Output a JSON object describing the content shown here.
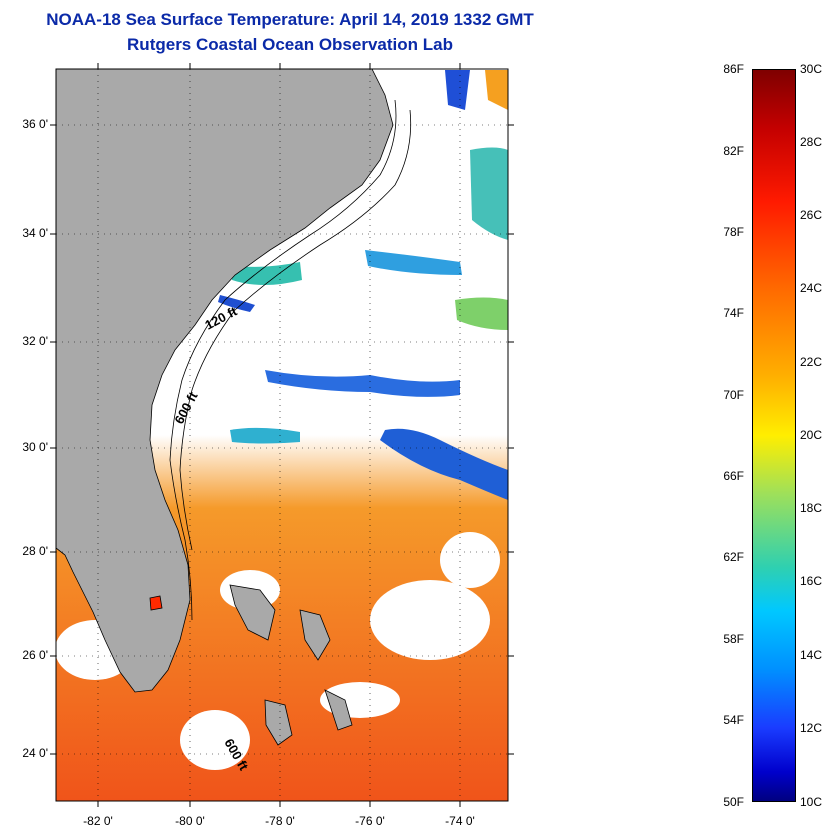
{
  "title_line1": "NOAA-18 Sea Surface Temperature:  April 14, 2019 1332 GMT",
  "title_line2": "Rutgers Coastal Ocean Observation Lab",
  "map": {
    "lat_labels": [
      "36 0'",
      "34 0'",
      "32 0'",
      "30 0'",
      "28 0'",
      "26 0'",
      "24 0'"
    ],
    "lon_labels": [
      "-82 0'",
      "-80 0'",
      "-78 0'",
      "-76 0'",
      "-74 0'"
    ],
    "isobath_labels": [
      "120 ft",
      "600 ft",
      "600 ft"
    ],
    "colors": {
      "land": "#a9a9a9",
      "cloud": "#ffffff",
      "warm_water": "#f2661a",
      "cool_water": "#1f5fd6"
    }
  },
  "colorbar": {
    "fahrenheit_labels": [
      "86F",
      "82F",
      "78F",
      "74F",
      "70F",
      "66F",
      "62F",
      "58F",
      "54F",
      "50F"
    ],
    "celsius_labels": [
      "30C",
      "28C",
      "26C",
      "24C",
      "22C",
      "20C",
      "18C",
      "16C",
      "14C",
      "12C",
      "10C"
    ]
  }
}
